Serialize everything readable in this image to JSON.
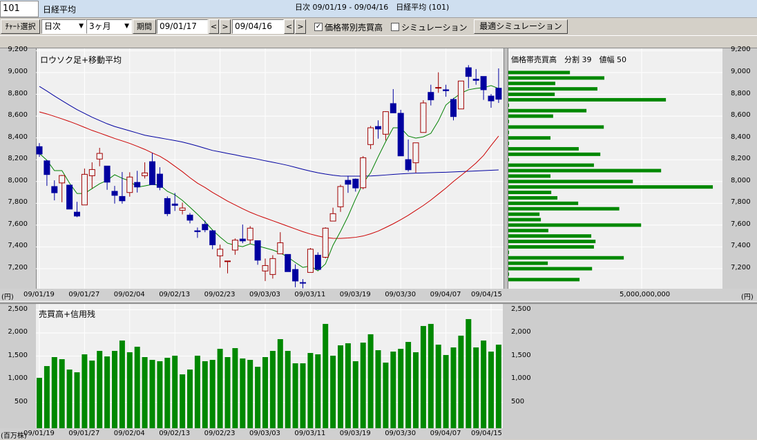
{
  "header": {
    "code": "101",
    "name": "日経平均"
  },
  "toolbar": {
    "chart_select": "ﾁｬｰﾄ選択",
    "interval": "日次",
    "range": "3ヶ月",
    "period_button": "期間",
    "start_date": "09/01/17",
    "end_date": "09/04/16",
    "prev": "<",
    "next": ">",
    "price_band_volume": {
      "label": "価格帯別売買高",
      "checked": true
    },
    "simulation": {
      "label": "シミュレーション",
      "checked": false
    },
    "optimal_simulation": "最適シミュレーション",
    "dropdown_icon": "▼",
    "check_mark": "✓"
  },
  "chart_title": "日次 09/01/19 - 09/04/16　日経平均 (101)",
  "colors": {
    "up": "#a00000",
    "down": "#0000a0",
    "ma_short": "#008000",
    "ma_mid": "#cc0000",
    "ma_long": "#0000a0",
    "volume": "#008800",
    "band": "#008800"
  },
  "chart_data": [
    {
      "type": "candlestick",
      "title": "ロウソク足+移動平均",
      "y_unit": "(円)",
      "ylim": [
        7000,
        9200
      ],
      "y_ticks": [
        "9,200",
        "9,000",
        "8,800",
        "8,600",
        "8,400",
        "8,200",
        "8,000",
        "7,800",
        "7,600",
        "7,400",
        "7,200"
      ],
      "x_ticks": [
        "09/01/19",
        "09/01/27",
        "09/02/04",
        "09/02/13",
        "09/02/23",
        "09/03/03",
        "09/03/11",
        "09/03/19",
        "09/03/30",
        "09/04/07",
        "09/04/15"
      ],
      "dates": [
        "09/01/19",
        "09/01/20",
        "09/01/21",
        "09/01/22",
        "09/01/23",
        "09/01/26",
        "09/01/27",
        "09/01/28",
        "09/01/29",
        "09/01/30",
        "09/02/02",
        "09/02/03",
        "09/02/04",
        "09/02/05",
        "09/02/06",
        "09/02/09",
        "09/02/10",
        "09/02/12",
        "09/02/13",
        "09/02/16",
        "09/02/17",
        "09/02/18",
        "09/02/19",
        "09/02/20",
        "09/02/23",
        "09/02/24",
        "09/02/25",
        "09/02/26",
        "09/02/27",
        "09/03/02",
        "09/03/03",
        "09/03/04",
        "09/03/05",
        "09/03/06",
        "09/03/09",
        "09/03/10",
        "09/03/11",
        "09/03/12",
        "09/03/13",
        "09/03/16",
        "09/03/17",
        "09/03/18",
        "09/03/19",
        "09/03/23",
        "09/03/24",
        "09/03/25",
        "09/03/26",
        "09/03/27",
        "09/03/30",
        "09/03/31",
        "09/04/01",
        "09/04/02",
        "09/04/03",
        "09/04/06",
        "09/04/07",
        "09/04/08",
        "09/04/09",
        "09/04/10",
        "09/04/13",
        "09/04/14",
        "09/04/15",
        "09/04/16"
      ],
      "ohlc": [
        [
          8320,
          8353,
          8226,
          8252
        ],
        [
          8190,
          8197,
          7960,
          8064
        ],
        [
          7954,
          8011,
          7827,
          7897
        ],
        [
          7987,
          8060,
          7810,
          8055
        ],
        [
          7967,
          7967,
          7747,
          7747
        ],
        [
          7719,
          7814,
          7673,
          7683
        ],
        [
          7785,
          8119,
          7785,
          8066
        ],
        [
          8053,
          8176,
          7937,
          8110
        ],
        [
          8206,
          8309,
          8140,
          8258
        ],
        [
          8142,
          8142,
          7924,
          7994
        ],
        [
          7910,
          7960,
          7797,
          7873
        ],
        [
          7863,
          8087,
          7797,
          7823
        ],
        [
          7899,
          8085,
          7861,
          8041
        ],
        [
          7992,
          8098,
          7899,
          7950
        ],
        [
          8053,
          8176,
          8028,
          8079
        ],
        [
          8182,
          8263,
          7971,
          7971
        ],
        [
          8068,
          8131,
          7920,
          7946
        ],
        [
          7844,
          7863,
          7683,
          7705
        ],
        [
          7794,
          7895,
          7730,
          7781
        ],
        [
          7736,
          7806,
          7698,
          7757
        ],
        [
          7692,
          7711,
          7616,
          7645
        ],
        [
          7548,
          7578,
          7483,
          7540
        ],
        [
          7607,
          7641,
          7535,
          7557
        ],
        [
          7548,
          7556,
          7379,
          7419
        ],
        [
          7318,
          7421,
          7210,
          7379
        ],
        [
          7265,
          7271,
          7157,
          7271
        ],
        [
          7371,
          7478,
          7328,
          7462
        ],
        [
          7472,
          7605,
          7434,
          7455
        ],
        [
          7464,
          7591,
          7426,
          7572
        ],
        [
          7457,
          7457,
          7236,
          7278
        ],
        [
          7179,
          7293,
          7087,
          7229
        ],
        [
          7147,
          7324,
          7109,
          7293
        ],
        [
          7337,
          7535,
          7337,
          7438
        ],
        [
          7331,
          7331,
          7173,
          7173
        ],
        [
          7193,
          7240,
          7030,
          7087
        ],
        [
          7073,
          7104,
          7020,
          7070
        ],
        [
          7166,
          7390,
          7166,
          7379
        ],
        [
          7324,
          7350,
          7193,
          7193
        ],
        [
          7305,
          7580,
          7295,
          7572
        ],
        [
          7637,
          7760,
          7637,
          7705
        ],
        [
          7768,
          7971,
          7721,
          7954
        ],
        [
          8011,
          8053,
          7896,
          7975
        ],
        [
          8022,
          8028,
          7907,
          7941
        ],
        [
          7943,
          8233,
          7929,
          8218
        ],
        [
          8339,
          8510,
          8298,
          8493
        ],
        [
          8505,
          8561,
          8393,
          8482
        ],
        [
          8434,
          8645,
          8377,
          8641
        ],
        [
          8715,
          8848,
          8630,
          8630
        ],
        [
          8626,
          8658,
          8235,
          8235
        ],
        [
          8201,
          8385,
          8091,
          8108
        ],
        [
          8172,
          8355,
          8081,
          8355
        ],
        [
          8450,
          8746,
          8450,
          8721
        ],
        [
          8818,
          8888,
          8698,
          8749
        ],
        [
          8857,
          9002,
          8814,
          8863
        ],
        [
          8842,
          8888,
          8778,
          8833
        ],
        [
          8753,
          8767,
          8561,
          8596
        ],
        [
          8666,
          8922,
          8666,
          8922
        ],
        [
          9044,
          9068,
          8856,
          8964
        ],
        [
          8939,
          9032,
          8888,
          8928
        ],
        [
          8964,
          8964,
          8749,
          8842
        ],
        [
          8784,
          8803,
          8677,
          8740
        ],
        [
          8856,
          9038,
          8721,
          8755
        ]
      ],
      "ma_short": [
        8258,
        8195,
        8100,
        8100,
        7986,
        7890,
        7890,
        7935,
        7979,
        8011,
        8062,
        8030,
        8005,
        7948,
        7960,
        7973,
        7967,
        7910,
        7878,
        7827,
        7764,
        7700,
        7631,
        7555,
        7491,
        7434,
        7415,
        7402,
        7428,
        7409,
        7390,
        7371,
        7345,
        7307,
        7257,
        7212,
        7225,
        7180,
        7244,
        7415,
        7542,
        7681,
        7840,
        7986,
        8081,
        8227,
        8366,
        8493,
        8493,
        8417,
        8398,
        8410,
        8442,
        8556,
        8702,
        8759,
        8810,
        8842,
        8854,
        8861,
        8880,
        8854
      ],
      "ma_mid": [
        8639,
        8620,
        8598,
        8575,
        8551,
        8525,
        8497,
        8469,
        8445,
        8420,
        8395,
        8373,
        8350,
        8323,
        8295,
        8262,
        8232,
        8190,
        8140,
        8090,
        8035,
        7985,
        7945,
        7900,
        7860,
        7820,
        7785,
        7750,
        7718,
        7690,
        7665,
        7640,
        7615,
        7590,
        7565,
        7540,
        7518,
        7500,
        7485,
        7479,
        7478,
        7482,
        7488,
        7500,
        7520,
        7545,
        7578,
        7612,
        7650,
        7690,
        7735,
        7780,
        7830,
        7885,
        7940,
        8000,
        8055,
        8110,
        8170,
        8239,
        8330,
        8417
      ],
      "ma_long": [
        8873,
        8830,
        8785,
        8742,
        8700,
        8660,
        8625,
        8590,
        8560,
        8530,
        8505,
        8485,
        8465,
        8445,
        8425,
        8412,
        8400,
        8388,
        8376,
        8362,
        8345,
        8326,
        8305,
        8285,
        8272,
        8258,
        8245,
        8230,
        8218,
        8205,
        8190,
        8177,
        8163,
        8148,
        8130,
        8112,
        8095,
        8080,
        8068,
        8058,
        8050,
        8049,
        8049,
        8049,
        8051,
        8055,
        8060,
        8065,
        8070,
        8074,
        8077,
        8079,
        8081,
        8083,
        8085,
        8088,
        8091,
        8094,
        8097,
        8100,
        8103,
        8106
      ]
    },
    {
      "type": "bar",
      "orientation": "horizontal",
      "title": "価格帯売買高　分割 39　値幅 50",
      "x_tick": "5,000,000,000",
      "unit": "(円)",
      "prices": [
        9000,
        8950,
        8900,
        8850,
        8800,
        8750,
        8700,
        8650,
        8600,
        8550,
        8500,
        8450,
        8400,
        8350,
        8300,
        8250,
        8200,
        8150,
        8100,
        8050,
        8000,
        7950,
        7900,
        7850,
        7800,
        7750,
        7700,
        7650,
        7600,
        7550,
        7500,
        7450,
        7400,
        7350,
        7300,
        7250,
        7200,
        7150,
        7100
      ],
      "values": [
        2310000000,
        3600000000,
        1760000000,
        3340000000,
        1740000000,
        5910000000,
        20000000,
        2930000000,
        1680000000,
        20000000,
        3580000000,
        20000000,
        1580000000,
        20000000,
        2640000000,
        3450000000,
        20000000,
        3210000000,
        5730000000,
        1580000000,
        4670000000,
        7670000000,
        1610000000,
        1840000000,
        2620000000,
        4160000000,
        1170000000,
        1220000000,
        4980000000,
        1500000000,
        3110000000,
        3270000000,
        3210000000,
        20000000,
        4330000000,
        1480000000,
        3140000000,
        20000000,
        2670000000
      ]
    },
    {
      "type": "bar",
      "title": "売買高+信用残",
      "y_unit": "(百万株)",
      "ylim": [
        0,
        2500
      ],
      "y_ticks": [
        "2,500",
        "2,000",
        "1,500",
        "1,000",
        "500"
      ],
      "values": [
        1030,
        1284,
        1478,
        1433,
        1209,
        1150,
        1538,
        1403,
        1612,
        1493,
        1612,
        1836,
        1583,
        1702,
        1478,
        1418,
        1389,
        1463,
        1508,
        1105,
        1209,
        1508,
        1389,
        1418,
        1657,
        1478,
        1672,
        1448,
        1418,
        1269,
        1478,
        1612,
        1866,
        1612,
        1344,
        1344,
        1567,
        1538,
        2195,
        1508,
        1732,
        1777,
        1389,
        1791,
        1971,
        1627,
        1359,
        1597,
        1657,
        1806,
        1583,
        2150,
        2195,
        1747,
        1523,
        1687,
        1941,
        2299,
        1687,
        1836,
        1597,
        1747
      ]
    }
  ]
}
